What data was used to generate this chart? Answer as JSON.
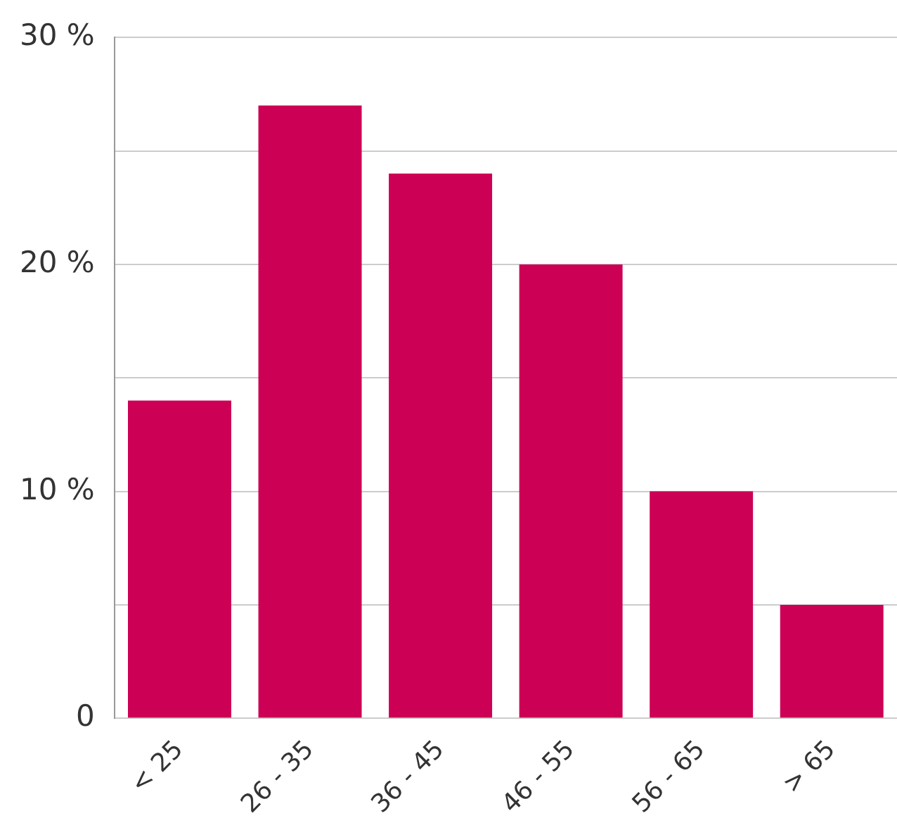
{
  "chart_data": {
    "type": "bar",
    "categories": [
      "< 25",
      "26 - 35",
      "36 - 45",
      "46 - 55",
      "56 - 65",
      "> 65"
    ],
    "values": [
      14,
      27,
      24,
      20,
      10,
      5
    ],
    "color": "#cc0055",
    "ylim": [
      0,
      30
    ],
    "yticks": [
      0,
      {
        "value": 5,
        "label": null
      },
      {
        "value": 10,
        "label": "10 %"
      },
      {
        "value": 15,
        "label": null
      },
      {
        "value": 20,
        "label": "20 %"
      },
      {
        "value": 25,
        "label": null
      },
      {
        "value": 30,
        "label": "30 %"
      }
    ],
    "grid": "y",
    "legend": false
  }
}
